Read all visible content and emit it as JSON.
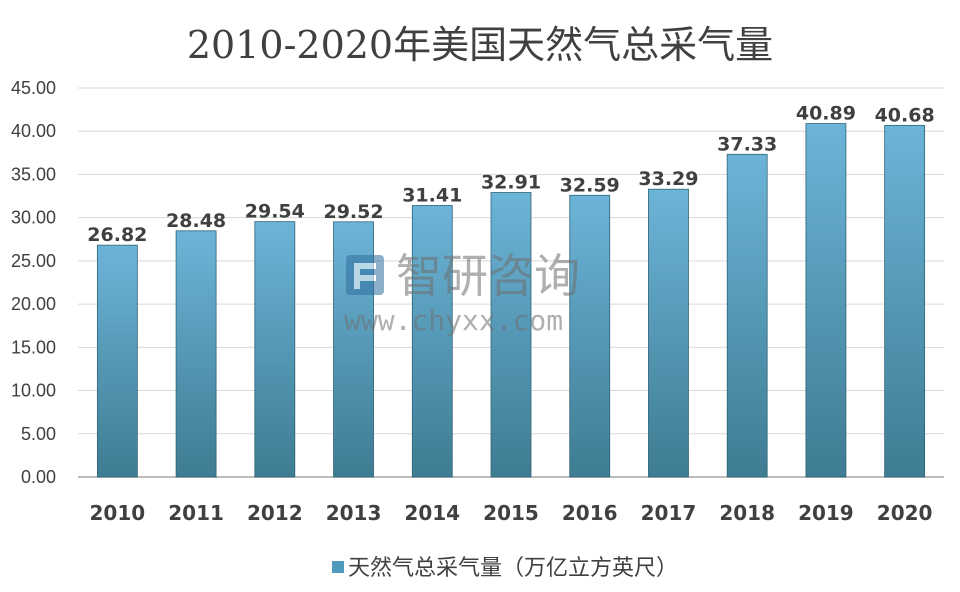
{
  "colors": {
    "bar_top": "#6cb4d8",
    "bar_bottom": "#3e7c92",
    "gridline": "#d9d9d9",
    "axis_line": "#a6a6a6",
    "text": "#404040",
    "legend_swatch": "#4f9bbd"
  },
  "chart_data": {
    "type": "bar",
    "title": "2010-2020年美国天然气总采气量",
    "categories": [
      "2010",
      "2011",
      "2012",
      "2013",
      "2014",
      "2015",
      "2016",
      "2017",
      "2018",
      "2019",
      "2020"
    ],
    "series": [
      {
        "name": "天然气总采气量（万亿立方英尺）",
        "values": [
          26.82,
          28.48,
          29.54,
          29.52,
          31.41,
          32.91,
          32.59,
          33.29,
          37.33,
          40.89,
          40.68
        ]
      }
    ],
    "data_labels": [
      "26.82",
      "28.48",
      "29.54",
      "29.52",
      "31.41",
      "32.91",
      "32.59",
      "33.29",
      "37.33",
      "40.89",
      "40.68"
    ],
    "ylim": [
      0,
      45
    ],
    "yticks": [
      "0.00",
      "5.00",
      "10.00",
      "15.00",
      "20.00",
      "25.00",
      "30.00",
      "35.00",
      "40.00",
      "45.00"
    ],
    "grid": true,
    "legend_position": "bottom"
  },
  "watermark": {
    "name": "智研咨询",
    "url": "www.chyxx.com",
    "icon": "chyxx-logo-icon"
  }
}
